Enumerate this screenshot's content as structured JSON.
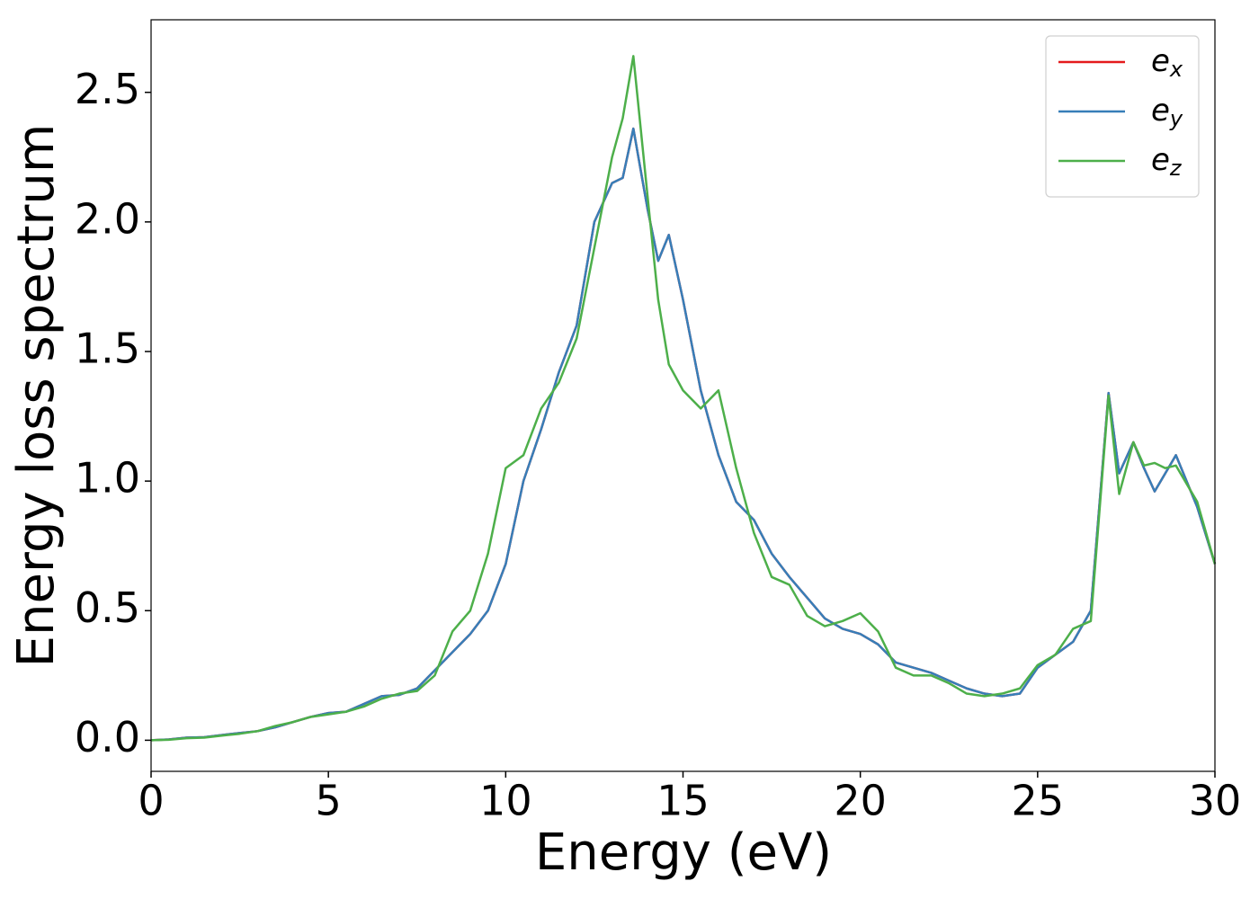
{
  "chart_data": {
    "type": "line",
    "xlabel": "Energy (eV)",
    "ylabel": "Energy loss spectrum",
    "x": [
      0,
      0.5,
      1,
      1.5,
      2,
      2.5,
      3,
      3.5,
      4,
      4.5,
      5,
      5.5,
      6,
      6.5,
      7,
      7.5,
      8,
      8.5,
      9,
      9.5,
      10,
      10.5,
      11,
      11.5,
      12,
      12.5,
      13,
      13.3,
      13.6,
      14,
      14.3,
      14.6,
      15,
      15.5,
      16,
      16.5,
      17,
      17.5,
      18,
      18.5,
      19,
      19.5,
      20,
      20.5,
      21,
      21.5,
      22,
      22.5,
      23,
      23.5,
      24,
      24.5,
      25,
      25.5,
      26,
      26.5,
      27,
      27.3,
      27.7,
      28,
      28.3,
      28.6,
      28.9,
      29.5,
      30
    ],
    "series": [
      {
        "name": "e_x",
        "color": "#e41a1c",
        "values": [
          0,
          0.003,
          0.01,
          0.012,
          0.02,
          0.028,
          0.035,
          0.05,
          0.07,
          0.09,
          0.105,
          0.11,
          0.14,
          0.17,
          0.175,
          0.2,
          0.27,
          0.34,
          0.41,
          0.5,
          0.68,
          1.0,
          1.2,
          1.42,
          1.6,
          2.0,
          2.15,
          2.17,
          2.36,
          2.05,
          1.85,
          1.95,
          1.7,
          1.35,
          1.1,
          0.92,
          0.85,
          0.72,
          0.63,
          0.55,
          0.47,
          0.43,
          0.41,
          0.37,
          0.3,
          0.28,
          0.26,
          0.23,
          0.2,
          0.18,
          0.17,
          0.18,
          0.28,
          0.33,
          0.38,
          0.5,
          1.34,
          1.03,
          1.15,
          1.05,
          0.96,
          1.03,
          1.1,
          0.9,
          0.68
        ]
      },
      {
        "name": "e_y",
        "color": "#377eb8",
        "values": [
          0,
          0.003,
          0.01,
          0.012,
          0.02,
          0.028,
          0.035,
          0.05,
          0.07,
          0.09,
          0.105,
          0.11,
          0.14,
          0.17,
          0.175,
          0.2,
          0.27,
          0.34,
          0.41,
          0.5,
          0.68,
          1.0,
          1.2,
          1.42,
          1.6,
          2.0,
          2.15,
          2.17,
          2.36,
          2.05,
          1.85,
          1.95,
          1.7,
          1.35,
          1.1,
          0.92,
          0.85,
          0.72,
          0.63,
          0.55,
          0.47,
          0.43,
          0.41,
          0.37,
          0.3,
          0.28,
          0.26,
          0.23,
          0.2,
          0.18,
          0.17,
          0.18,
          0.28,
          0.33,
          0.38,
          0.5,
          1.34,
          1.03,
          1.15,
          1.05,
          0.96,
          1.03,
          1.1,
          0.9,
          0.68
        ]
      },
      {
        "name": "e_z",
        "color": "#4daf4a",
        "values": [
          0,
          0.002,
          0.008,
          0.01,
          0.018,
          0.025,
          0.035,
          0.055,
          0.07,
          0.09,
          0.1,
          0.11,
          0.13,
          0.16,
          0.18,
          0.19,
          0.25,
          0.42,
          0.5,
          0.72,
          1.05,
          1.1,
          1.28,
          1.38,
          1.55,
          1.9,
          2.25,
          2.4,
          2.64,
          2.1,
          1.7,
          1.45,
          1.35,
          1.28,
          1.35,
          1.05,
          0.8,
          0.63,
          0.6,
          0.48,
          0.44,
          0.46,
          0.49,
          0.42,
          0.28,
          0.25,
          0.25,
          0.22,
          0.18,
          0.17,
          0.18,
          0.2,
          0.29,
          0.33,
          0.43,
          0.46,
          1.33,
          0.95,
          1.15,
          1.06,
          1.07,
          1.05,
          1.06,
          0.92,
          0.68
        ]
      }
    ],
    "xlim": [
      0,
      30
    ],
    "xticks": [
      0,
      5,
      10,
      15,
      20,
      25,
      30
    ],
    "ylim": [
      -0.12,
      2.78
    ],
    "yticks": [
      {
        "value": 0,
        "label": "0.0"
      },
      {
        "value": 0.5,
        "label": "0.5"
      },
      {
        "value": 1,
        "label": "1.0"
      },
      {
        "value": 1.5,
        "label": "1.5"
      },
      {
        "value": 2,
        "label": "2.0"
      },
      {
        "value": 2.5,
        "label": "2.5"
      }
    ],
    "legend": "upper right",
    "grid": false
  }
}
